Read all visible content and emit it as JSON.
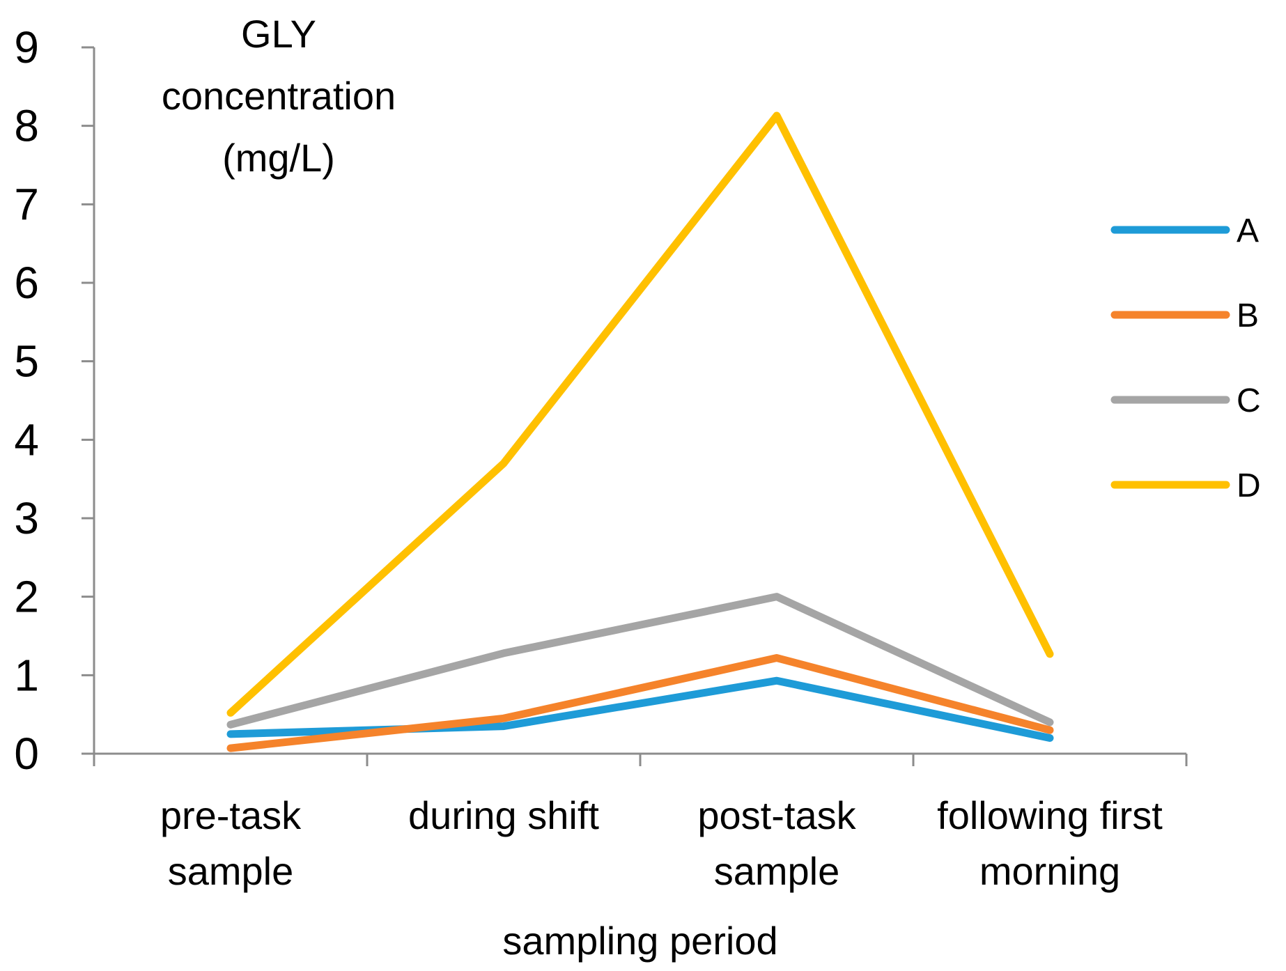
{
  "chart_data": {
    "type": "line",
    "title": "",
    "ylabel_lines": [
      "GLY",
      "concentration",
      "(mg/L)"
    ],
    "xlabel": "sampling period",
    "categories": [
      [
        "pre-task",
        "sample"
      ],
      [
        "during shift"
      ],
      [
        "post-task",
        "sample"
      ],
      [
        "following first",
        "morning"
      ]
    ],
    "ylim": [
      0,
      9
    ],
    "yticks": [
      "0",
      "1",
      "2",
      "3",
      "4",
      "5",
      "6",
      "7",
      "8",
      "9"
    ],
    "grid": false,
    "legend_position": "right",
    "series": [
      {
        "name": "A",
        "color": "#1E9BD7",
        "values": [
          0.25,
          0.35,
          0.93,
          0.2
        ]
      },
      {
        "name": "B",
        "color": "#F5832B",
        "values": [
          0.07,
          0.45,
          1.22,
          0.3
        ]
      },
      {
        "name": "C",
        "color": "#A5A5A5",
        "values": [
          0.37,
          1.28,
          2.0,
          0.4
        ]
      },
      {
        "name": "D",
        "color": "#FFC000",
        "values": [
          0.52,
          3.7,
          8.13,
          1.27
        ]
      }
    ]
  }
}
